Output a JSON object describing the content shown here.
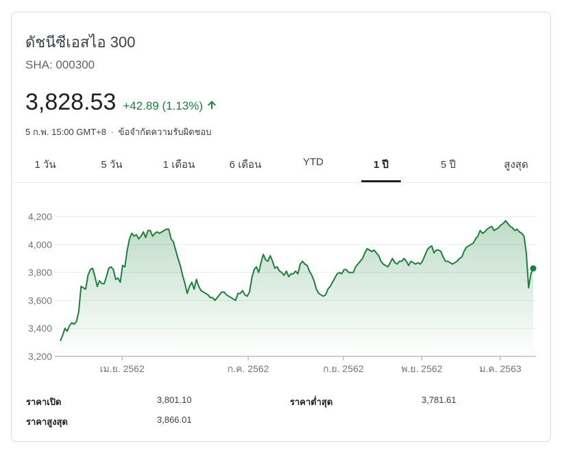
{
  "header": {
    "title": "ดัชนีซีเอสไอ 300",
    "ticker": "SHA: 000300",
    "price": "3,828.53",
    "change": "+42.89 (1.13%)",
    "timestamp": "5 ก.พ. 15:00 GMT+8",
    "separator": "·",
    "disclaimer": "ข้อจำกัดความรับผิดชอบ"
  },
  "tabs": [
    "1 วัน",
    "5 วัน",
    "1 เดือน",
    "6 เดือน",
    "YTD",
    "1 ปี",
    "5 ปี",
    "สูงสุด"
  ],
  "active_tab": "1 ปี",
  "stats": {
    "open_label": "ราคาเปิด",
    "open_value": "3,801.10",
    "high_label": "ราคาสูงสุด",
    "high_value": "3,866.01",
    "low_label": "ราคาต่ำสุด",
    "low_value": "3,781.61"
  },
  "colors": {
    "positive": "#188038",
    "line": "#188038"
  },
  "chart_data": {
    "type": "area",
    "x_unit": "trading days over the past year (Feb 2562 – Feb 2563)",
    "ylim": [
      3200,
      4200
    ],
    "yticks": [
      4200,
      4000,
      3800,
      3600,
      3400,
      3200
    ],
    "ytick_labels": [
      "4,200",
      "4,000",
      "3,800",
      "3,600",
      "3,400",
      "3,200"
    ],
    "xtick_labels": [
      "เม.ย. 2562",
      "ก.ค. 2562",
      "ก.ย. 2562",
      "พ.ย. 2562",
      "ม.ค. 2563"
    ],
    "xtick_fraction": [
      0.13,
      0.395,
      0.595,
      0.76,
      0.925
    ],
    "grid": true,
    "series": [
      {
        "values": [
          3310,
          3350,
          3400,
          3380,
          3420,
          3440,
          3430,
          3450,
          3520,
          3700,
          3690,
          3680,
          3780,
          3820,
          3830,
          3770,
          3700,
          3740,
          3720,
          3720,
          3770,
          3830,
          3840,
          3820,
          3750,
          3760,
          3730,
          3850,
          3840,
          3960,
          4040,
          4080,
          4060,
          4070,
          4040,
          4060,
          4090,
          4050,
          4100,
          4100,
          4060,
          4080,
          4090,
          4080,
          4090,
          4100,
          4110,
          4110,
          4040,
          4020,
          3960,
          3900,
          3850,
          3780,
          3720,
          3650,
          3700,
          3730,
          3680,
          3750,
          3700,
          3670,
          3660,
          3650,
          3640,
          3620,
          3620,
          3600,
          3620,
          3640,
          3660,
          3660,
          3640,
          3630,
          3620,
          3610,
          3600,
          3650,
          3650,
          3670,
          3640,
          3630,
          3660,
          3760,
          3820,
          3840,
          3800,
          3870,
          3930,
          3890,
          3880,
          3920,
          3880,
          3830,
          3840,
          3810,
          3800,
          3780,
          3810,
          3770,
          3790,
          3790,
          3810,
          3790,
          3860,
          3880,
          3860,
          3850,
          3810,
          3780,
          3740,
          3680,
          3650,
          3640,
          3630,
          3640,
          3680,
          3700,
          3730,
          3760,
          3790,
          3800,
          3790,
          3820,
          3820,
          3800,
          3800,
          3800,
          3840,
          3860,
          3880,
          3900,
          3940,
          3970,
          3960,
          3950,
          3960,
          3940,
          3920,
          3880,
          3860,
          3850,
          3840,
          3870,
          3900,
          3870,
          3860,
          3880,
          3880,
          3900,
          3880,
          3850,
          3880,
          3870,
          3860,
          3870,
          3860,
          3880,
          3920,
          3960,
          3980,
          3990,
          3940,
          3960,
          3960,
          3950,
          3910,
          3880,
          3880,
          3870,
          3860,
          3870,
          3880,
          3900,
          3910,
          3950,
          3980,
          3990,
          4000,
          4010,
          4040,
          4060,
          4100,
          4080,
          4090,
          4110,
          4120,
          4130,
          4100,
          4110,
          4120,
          4140,
          4150,
          4170,
          4150,
          4130,
          4120,
          4100,
          4110,
          4090,
          4080,
          4060,
          3940,
          3690,
          3790,
          3829
        ]
      }
    ]
  }
}
